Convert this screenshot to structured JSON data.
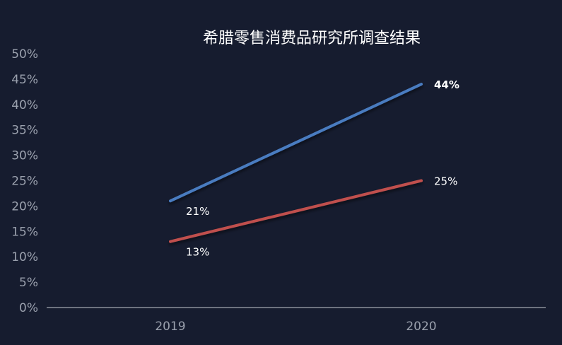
{
  "chart_data": {
    "type": "line",
    "title": "希腊零售消费品研究所调查结果",
    "xlabel": "",
    "ylabel": "",
    "categories": [
      "2019",
      "2020"
    ],
    "ylim": [
      0,
      50
    ],
    "ytick_values": [
      0,
      5,
      10,
      15,
      20,
      25,
      30,
      35,
      40,
      45,
      50
    ],
    "ytick_labels": [
      "0%",
      "5%",
      "10%",
      "15%",
      "20%",
      "25%",
      "30%",
      "35%",
      "40%",
      "45%",
      "50%"
    ],
    "grid": false,
    "legend": "none",
    "series": [
      {
        "color": "#4a7bc0",
        "values": [
          21,
          44
        ],
        "labels": [
          "21%",
          "44%"
        ]
      },
      {
        "color": "#c0504d",
        "values": [
          13,
          25
        ],
        "labels": [
          "13%",
          "25%"
        ]
      }
    ]
  },
  "colors": {
    "background": "#161c2f",
    "axis": "#8a8f9a",
    "tick_text": "#9aa0ad",
    "title_text": "#ffffff",
    "label_text": "#ffffff"
  }
}
